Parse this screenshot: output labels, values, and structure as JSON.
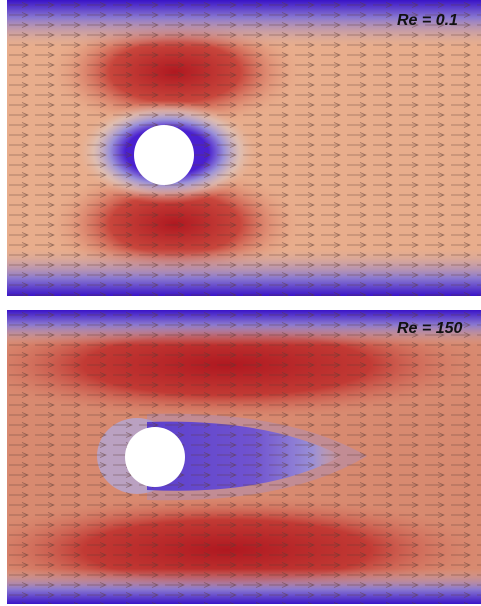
{
  "panels": [
    {
      "label": "Re = 0.1"
    },
    {
      "label": "Re = 150"
    }
  ],
  "colors": {
    "background": "#ffffff",
    "field_low": "#3a14c8",
    "field_mid": "#e8ad8c",
    "field_high": "#b01820",
    "obstacle": "#ffffff",
    "arrow": "#5a3a32"
  }
}
